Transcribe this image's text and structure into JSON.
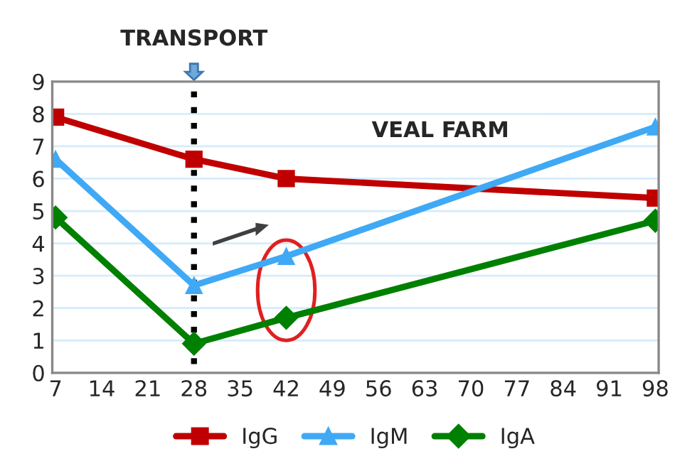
{
  "chart_data": {
    "type": "line",
    "x": [
      7,
      28,
      42,
      98
    ],
    "series": [
      {
        "name": "IgG",
        "color": "#c00000",
        "values": [
          7.9,
          6.6,
          6.0,
          5.4
        ],
        "marker": "square"
      },
      {
        "name": "IgM",
        "color": "#3fa9f5",
        "values": [
          6.6,
          2.7,
          3.6,
          7.6
        ],
        "marker": "triangle"
      },
      {
        "name": "IgA",
        "color": "#008000",
        "values": [
          4.8,
          0.9,
          1.7,
          4.7
        ],
        "marker": "diamond"
      }
    ],
    "xlim": [
      6.5,
      98.5
    ],
    "xticks": [
      7,
      14,
      21,
      28,
      35,
      42,
      49,
      56,
      63,
      70,
      77,
      84,
      91,
      98
    ],
    "ylim": [
      0,
      9
    ],
    "yticks": [
      0,
      1,
      2,
      3,
      4,
      5,
      6,
      7,
      8,
      9
    ],
    "grid": "y",
    "legend": "bottom",
    "line_style": "solid",
    "ref_lines": [
      {
        "axis": "x",
        "value": 28,
        "label": "TRANSPORT",
        "color": "#000000",
        "line_style": "dotted"
      }
    ],
    "annotations": [
      "VEAL FARM"
    ]
  }
}
